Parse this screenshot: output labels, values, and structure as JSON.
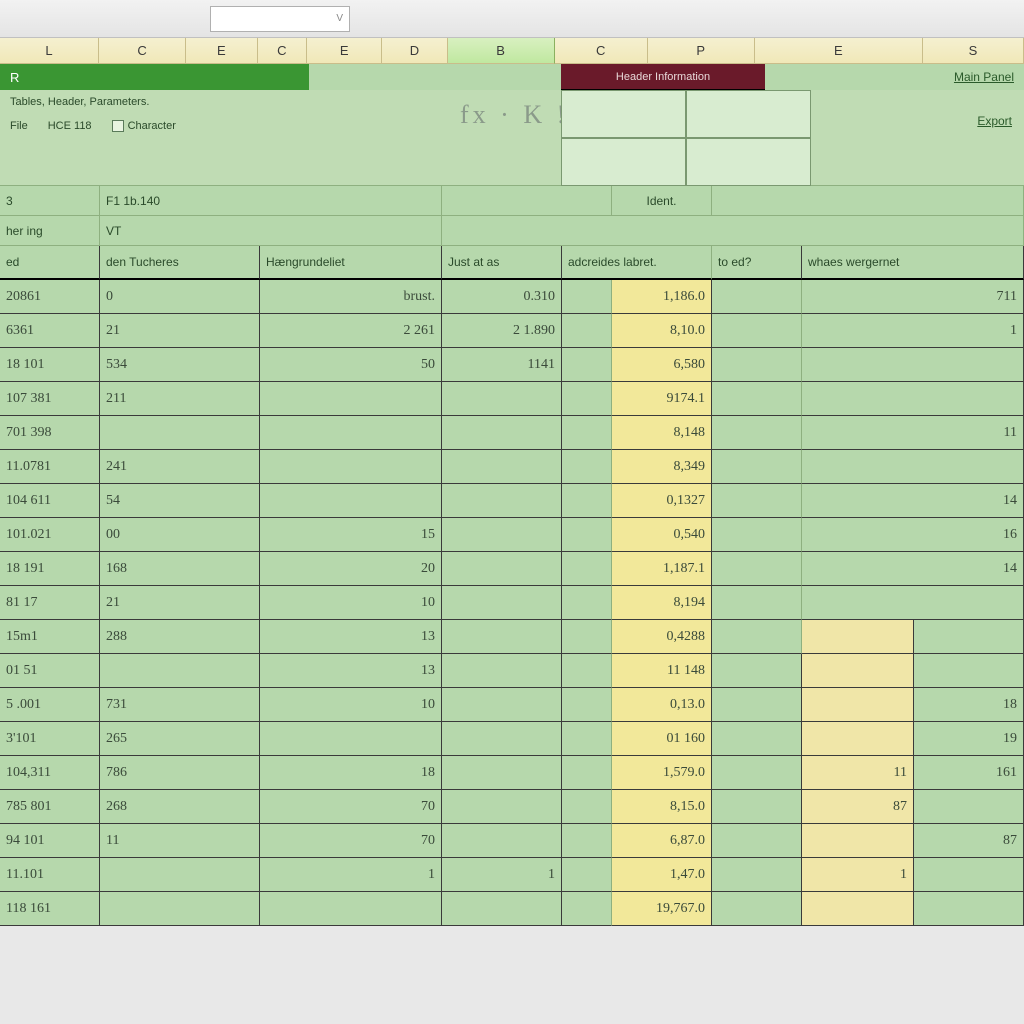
{
  "toolbar": {
    "name_box_value": "",
    "dropdown_glyph": "V"
  },
  "column_headers": {
    "labels": [
      "L",
      "C",
      "E",
      "C",
      "E",
      "D",
      "B",
      "C",
      "P",
      "E",
      "S"
    ],
    "widths": [
      100,
      88,
      72,
      50,
      76,
      66,
      108,
      94,
      108,
      170,
      102
    ],
    "selected_index": 6
  },
  "green_bar": {
    "left_label": "R",
    "tab_label": "Header Information",
    "right_link": "Main Panel"
  },
  "ribbon": {
    "line1": "Tables, Header, Parameters.",
    "field1_label": "File",
    "field1_value": "HCE 118",
    "checkbox_label": "Character",
    "center_text": "fx · K !",
    "right_link": "Export"
  },
  "sheet": {
    "header_top": {
      "c0": "3",
      "c1": "F1   1b.140",
      "c4_span": "Ident."
    },
    "header_row1": {
      "c0": "her   ing",
      "c1": "VT"
    },
    "header_row2": {
      "c0": "ed",
      "c1": "den Tucheres",
      "c2": "Hængrundeliet",
      "c3": "Just at as",
      "c4": "adcreides labret.",
      "c5": "to ed?",
      "c6": "whaes wergernet"
    },
    "rows": [
      {
        "c0": "20861",
        "c1": "0",
        "c2": "brust.",
        "c3": "0.310",
        "c5": "1,186.0",
        "c8": "711"
      },
      {
        "c0": "6361",
        "c1": "21",
        "c2": "2   261",
        "c3": "2 1.890",
        "c5": "8,10.0",
        "c8": "1"
      },
      {
        "c0": "18 101",
        "c1": "534",
        "c2": "50",
        "c3": "1141",
        "c5": "6,580",
        "c8": ""
      },
      {
        "c0": "107 381",
        "c1": "211",
        "c2": "",
        "c3": "",
        "c5": "9174.1",
        "c8": ""
      },
      {
        "c0": "701 398",
        "c1": "",
        "c2": "",
        "c3": "",
        "c5": "8,148",
        "c8": "11"
      },
      {
        "c0": "11.0781",
        "c1": "241",
        "c2": "",
        "c3": "",
        "c5": "8,349",
        "c8": ""
      },
      {
        "c0": "104 611",
        "c1": "54",
        "c2": "",
        "c3": "",
        "c5": "0,1327",
        "c8": "14"
      },
      {
        "c0": "101.021",
        "c1": "00",
        "c2": "15",
        "c3": "",
        "c5": "0,540",
        "c8": "16"
      },
      {
        "c0": "18 191",
        "c1": "168",
        "c2": "20",
        "c3": "",
        "c5": "1,187.1",
        "c8": "14"
      },
      {
        "c0": "81 17",
        "c1": "21",
        "c2": "10",
        "c3": "",
        "c5": "8,194",
        "c8": ""
      },
      {
        "c0": "15m1",
        "c1": "288",
        "c2": "13",
        "c3": "",
        "c5": "0,4288",
        "c7": "",
        "c8": ""
      },
      {
        "c0": "01 51",
        "c1": "",
        "c2": "13",
        "c3": "",
        "c5": "11 148",
        "c7": "",
        "c8": ""
      },
      {
        "c0": "5 .001",
        "c1": "731",
        "c2": "10",
        "c3": "",
        "c5": "0,13.0",
        "c7": "",
        "c8": "18"
      },
      {
        "c0": "3'101",
        "c1": "265",
        "c2": "",
        "c3": "",
        "c5": "01 160",
        "c7": "",
        "c8": "19"
      },
      {
        "c0": "104,311",
        "c1": "786",
        "c2": "18",
        "c3": "",
        "c5": "1,579.0",
        "c7": "11",
        "c8": "161"
      },
      {
        "c0": "785 801",
        "c1": "268",
        "c2": "70",
        "c3": "",
        "c5": "8,15.0",
        "c7": "87",
        "c8": ""
      },
      {
        "c0": "94 101",
        "c1": "11",
        "c2": "70",
        "c3": "",
        "c5": "6,87.0",
        "c7": "",
        "c8": "87"
      },
      {
        "c0": "11.101",
        "c1": "",
        "c2": "1",
        "c3": "1",
        "c5": "1,47.0",
        "c7": "1",
        "c8": ""
      },
      {
        "c0": "118 161",
        "c1": "",
        "c2": "",
        "c3": "",
        "c5": "19,767.0",
        "c7": "",
        "c8": ""
      }
    ]
  },
  "colors": {
    "sheet_bg": "#b6d8ac",
    "highlight": "#f2e89a",
    "green_bar": "#3a9633",
    "tab_bg": "#6a1a2a",
    "col_header_bg": "#f0e8b8",
    "col_header_sel": "#c0e8a0",
    "border_dark": "#3a3a3a",
    "border_light": "#8eb080"
  }
}
